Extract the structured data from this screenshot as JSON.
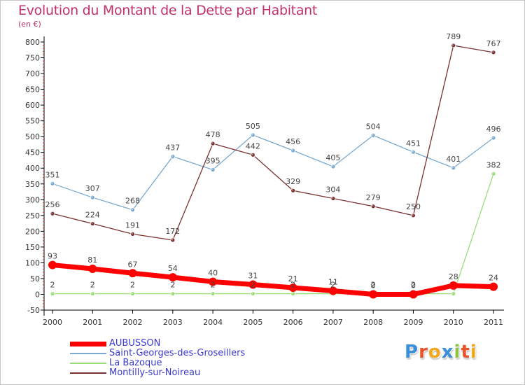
{
  "title": "Evolution du Montant de la Dette par Habitant",
  "unit_label": "(en €)",
  "logo": {
    "letters": [
      "P",
      "r",
      "o",
      "x",
      "i",
      "t",
      "i"
    ],
    "colors": [
      "#3a8fd8",
      "#e8542a",
      "#f2a81d",
      "#3a8fd8",
      "#8cc63e",
      "#e8542a",
      "#f2a81d"
    ]
  },
  "chart_data": {
    "type": "line",
    "x": [
      "2000",
      "2001",
      "2002",
      "2003",
      "2004",
      "2005",
      "2006",
      "2007",
      "2008",
      "2009",
      "2010",
      "2011"
    ],
    "ylim": [
      -50,
      800
    ],
    "yticks": [
      -50,
      0,
      50,
      100,
      150,
      200,
      250,
      300,
      350,
      400,
      450,
      500,
      550,
      600,
      650,
      700,
      750,
      800
    ],
    "grid": false,
    "legend_position": "bottom-left",
    "series": [
      {
        "name": "AUBUSSON",
        "color": "#ff0000",
        "values": [
          93,
          81,
          67,
          54,
          40,
          31,
          21,
          11,
          0,
          0,
          28,
          24
        ]
      },
      {
        "name": "Saint-Georges-des-Groseillers",
        "color": "#7aaad0",
        "values": [
          351,
          307,
          268,
          437,
          395,
          505,
          456,
          405,
          504,
          451,
          401,
          496
        ]
      },
      {
        "name": "La Bazoque",
        "color": "#99dd77",
        "values": [
          2,
          2,
          2,
          2,
          2,
          2,
          2,
          2,
          2,
          2,
          2,
          382
        ]
      },
      {
        "name": "Montilly-sur-Noireau",
        "color": "#7a3030",
        "values": [
          256,
          224,
          191,
          172,
          478,
          442,
          329,
          304,
          279,
          250,
          789,
          767
        ]
      }
    ],
    "point_labels": [
      {
        "series": 0,
        "labels": [
          "93",
          "81",
          "67",
          "54",
          "40",
          "31",
          "21",
          "11",
          "0",
          "0",
          "28",
          "24"
        ]
      },
      {
        "series": 1,
        "labels": [
          "351",
          "307",
          "268",
          "437",
          "395",
          "505",
          "456",
          "405",
          "504",
          "451",
          "401",
          "496"
        ]
      },
      {
        "series": 2,
        "labels": [
          "2",
          "2",
          "2",
          "2",
          "2",
          "2",
          "2",
          "2",
          "2",
          "2",
          "",
          "382"
        ]
      },
      {
        "series": 3,
        "labels": [
          "256",
          "224",
          "191",
          "172",
          "478",
          "442",
          "329",
          "304",
          "279",
          "250",
          "789",
          "767"
        ]
      }
    ]
  }
}
